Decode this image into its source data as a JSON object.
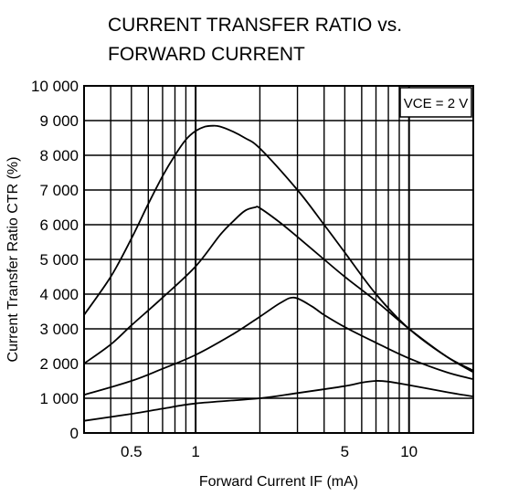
{
  "chart_data": {
    "type": "line",
    "title_lines": [
      "CURRENT TRANSFER RATIO vs.",
      "FORWARD CURRENT"
    ],
    "xlabel": "Forward Current  IF (mA)",
    "ylabel": "Current Transfer Ratio  CTR (%)",
    "x_scale": "log",
    "xlim": [
      0.3,
      20
    ],
    "ylim": [
      0,
      10000
    ],
    "x_ticks": [
      0.5,
      1,
      5,
      10
    ],
    "x_tick_labels": [
      "0.5",
      "1",
      "5",
      "10"
    ],
    "y_ticks": [
      0,
      1000,
      2000,
      3000,
      4000,
      5000,
      6000,
      7000,
      8000,
      9000,
      10000
    ],
    "y_tick_labels": [
      "0",
      "1 000",
      "2 000",
      "3 000",
      "4 000",
      "5 000",
      "6 000",
      "7 000",
      "8 000",
      "9 000",
      "10 000"
    ],
    "grid": true,
    "annotation": "VCE = 2 V",
    "series": [
      {
        "points": [
          [
            0.3,
            3400
          ],
          [
            0.4,
            4500
          ],
          [
            0.5,
            5600
          ],
          [
            0.6,
            6600
          ],
          [
            0.7,
            7400
          ],
          [
            0.8,
            8000
          ],
          [
            0.9,
            8450
          ],
          [
            1.0,
            8700
          ],
          [
            1.1,
            8820
          ],
          [
            1.2,
            8850
          ],
          [
            1.3,
            8830
          ],
          [
            1.5,
            8680
          ],
          [
            1.7,
            8500
          ],
          [
            2.0,
            8200
          ],
          [
            3.0,
            7000
          ],
          [
            4.0,
            6000
          ],
          [
            5.0,
            5200
          ],
          [
            7.0,
            4000
          ],
          [
            10.0,
            3000
          ],
          [
            15.0,
            2200
          ],
          [
            20.0,
            1800
          ]
        ]
      },
      {
        "points": [
          [
            0.3,
            2000
          ],
          [
            0.4,
            2550
          ],
          [
            0.5,
            3100
          ],
          [
            0.7,
            3900
          ],
          [
            1.0,
            4800
          ],
          [
            1.3,
            5700
          ],
          [
            1.5,
            6100
          ],
          [
            1.7,
            6400
          ],
          [
            1.9,
            6500
          ],
          [
            2.0,
            6480
          ],
          [
            2.5,
            6050
          ],
          [
            3.0,
            5650
          ],
          [
            4.0,
            5000
          ],
          [
            5.0,
            4500
          ],
          [
            7.0,
            3800
          ],
          [
            10.0,
            3000
          ],
          [
            15.0,
            2200
          ],
          [
            20.0,
            1750
          ]
        ]
      },
      {
        "points": [
          [
            0.3,
            1100
          ],
          [
            0.5,
            1500
          ],
          [
            0.7,
            1850
          ],
          [
            1.0,
            2250
          ],
          [
            1.5,
            2850
          ],
          [
            2.0,
            3350
          ],
          [
            2.5,
            3750
          ],
          [
            2.9,
            3900
          ],
          [
            3.5,
            3650
          ],
          [
            4.0,
            3400
          ],
          [
            5.0,
            3050
          ],
          [
            7.0,
            2600
          ],
          [
            10.0,
            2150
          ],
          [
            15.0,
            1750
          ],
          [
            20.0,
            1550
          ]
        ]
      },
      {
        "points": [
          [
            0.3,
            350
          ],
          [
            0.5,
            550
          ],
          [
            0.7,
            700
          ],
          [
            1.0,
            850
          ],
          [
            2.0,
            1000
          ],
          [
            3.0,
            1150
          ],
          [
            5.0,
            1350
          ],
          [
            6.0,
            1450
          ],
          [
            7.0,
            1500
          ],
          [
            8.0,
            1480
          ],
          [
            10.0,
            1380
          ],
          [
            15.0,
            1180
          ],
          [
            20.0,
            1050
          ]
        ]
      }
    ]
  }
}
